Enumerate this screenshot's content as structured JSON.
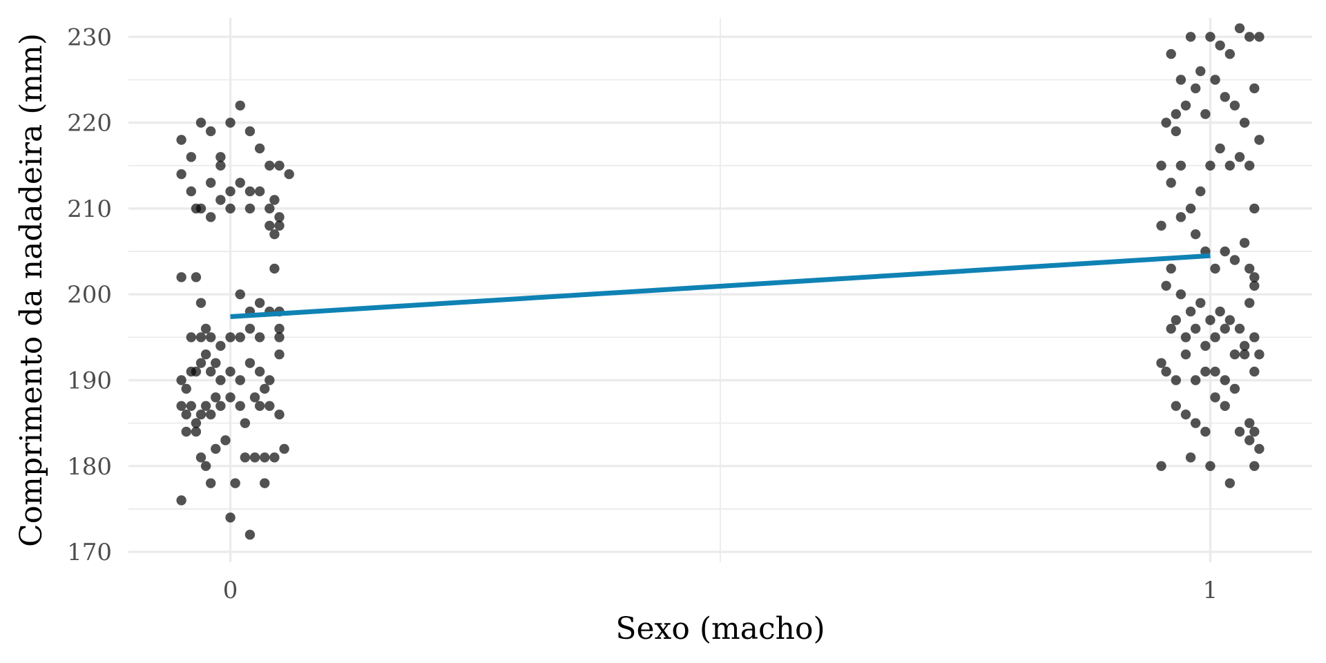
{
  "chart_data": {
    "type": "scatter",
    "title": "",
    "xlabel": "Sexo (macho)",
    "ylabel": "Comprimento da nadadeira (mm)",
    "xlim": [
      -0.104,
      1.104
    ],
    "ylim": [
      168.8,
      232.2
    ],
    "x_ticks": [
      0,
      1
    ],
    "y_ticks": [
      170,
      180,
      190,
      200,
      210,
      220,
      230
    ],
    "grid": true,
    "colors": {
      "points": "#000000",
      "fit_line": "#0f82b4",
      "grid": "#ebebeb"
    },
    "fit_line": {
      "x": [
        0,
        1
      ],
      "y": [
        197.4,
        204.5
      ]
    },
    "series": [
      {
        "points": [
          [
            -0.05,
            176
          ],
          [
            -0.05,
            218
          ],
          [
            -0.05,
            214
          ],
          [
            -0.04,
            216
          ],
          [
            -0.03,
            220
          ],
          [
            -0.02,
            219
          ],
          [
            -0.01,
            215
          ],
          [
            0.0,
            220
          ],
          [
            0.01,
            222
          ],
          [
            0.02,
            219
          ],
          [
            0.03,
            217
          ],
          [
            -0.04,
            212
          ],
          [
            -0.03,
            210
          ],
          [
            -0.02,
            213
          ],
          [
            -0.01,
            211
          ],
          [
            0.0,
            212
          ],
          [
            0.01,
            213
          ],
          [
            0.02,
            210
          ],
          [
            0.03,
            212
          ],
          [
            0.04,
            215
          ],
          [
            0.05,
            215
          ],
          [
            0.06,
            214
          ],
          [
            -0.035,
            210
          ],
          [
            -0.02,
            209
          ],
          [
            0.0,
            210
          ],
          [
            0.02,
            212
          ],
          [
            0.04,
            208
          ],
          [
            0.05,
            209
          ],
          [
            0.05,
            208
          ],
          [
            0.045,
            207
          ],
          [
            0.045,
            211
          ],
          [
            0.04,
            210
          ],
          [
            -0.01,
            216
          ],
          [
            -0.05,
            202
          ],
          [
            -0.035,
            202
          ],
          [
            -0.03,
            199
          ],
          [
            0.01,
            200
          ],
          [
            0.02,
            198
          ],
          [
            0.03,
            199
          ],
          [
            0.04,
            198
          ],
          [
            0.05,
            198
          ],
          [
            0.045,
            203
          ],
          [
            0.05,
            196
          ],
          [
            -0.04,
            195
          ],
          [
            -0.03,
            195
          ],
          [
            -0.025,
            196
          ],
          [
            -0.02,
            195
          ],
          [
            -0.01,
            194
          ],
          [
            0.0,
            195
          ],
          [
            0.01,
            195
          ],
          [
            0.02,
            196
          ],
          [
            0.03,
            195
          ],
          [
            0.05,
            195
          ],
          [
            -0.05,
            190
          ],
          [
            -0.045,
            189
          ],
          [
            -0.04,
            191
          ],
          [
            -0.035,
            191
          ],
          [
            -0.03,
            192
          ],
          [
            -0.025,
            193
          ],
          [
            -0.02,
            191
          ],
          [
            -0.015,
            192
          ],
          [
            -0.01,
            190
          ],
          [
            0.0,
            191
          ],
          [
            0.01,
            190
          ],
          [
            0.02,
            192
          ],
          [
            0.03,
            191
          ],
          [
            0.035,
            189
          ],
          [
            0.04,
            190
          ],
          [
            0.05,
            193
          ],
          [
            -0.05,
            187
          ],
          [
            -0.045,
            186
          ],
          [
            -0.04,
            187
          ],
          [
            -0.035,
            185
          ],
          [
            -0.03,
            186
          ],
          [
            -0.025,
            187
          ],
          [
            -0.02,
            186
          ],
          [
            -0.015,
            188
          ],
          [
            -0.01,
            187
          ],
          [
            0.0,
            188
          ],
          [
            0.01,
            187
          ],
          [
            0.015,
            185
          ],
          [
            0.025,
            188
          ],
          [
            0.03,
            187
          ],
          [
            0.04,
            187
          ],
          [
            0.05,
            186
          ],
          [
            -0.045,
            184
          ],
          [
            -0.035,
            184
          ],
          [
            -0.03,
            181
          ],
          [
            -0.025,
            180
          ],
          [
            -0.015,
            182
          ],
          [
            -0.005,
            183
          ],
          [
            0.015,
            181
          ],
          [
            0.025,
            181
          ],
          [
            0.035,
            181
          ],
          [
            0.045,
            181
          ],
          [
            0.055,
            182
          ],
          [
            -0.02,
            178
          ],
          [
            0.005,
            178
          ],
          [
            0.035,
            178
          ],
          [
            0.0,
            174
          ],
          [
            0.02,
            172
          ]
        ]
      },
      {
        "points": [
          [
            0.95,
            215
          ],
          [
            0.96,
            228
          ],
          [
            0.97,
            225
          ],
          [
            0.98,
            230
          ],
          [
            0.99,
            226
          ],
          [
            1.0,
            230
          ],
          [
            1.01,
            229
          ],
          [
            1.02,
            228
          ],
          [
            1.03,
            231
          ],
          [
            1.04,
            230
          ],
          [
            1.05,
            230
          ],
          [
            0.955,
            220
          ],
          [
            0.965,
            221
          ],
          [
            0.975,
            222
          ],
          [
            0.985,
            224
          ],
          [
            0.995,
            221
          ],
          [
            1.005,
            225
          ],
          [
            1.015,
            223
          ],
          [
            1.025,
            222
          ],
          [
            1.035,
            220
          ],
          [
            1.045,
            224
          ],
          [
            1.05,
            218
          ],
          [
            0.96,
            213
          ],
          [
            0.97,
            215
          ],
          [
            0.98,
            210
          ],
          [
            0.99,
            212
          ],
          [
            1.0,
            215
          ],
          [
            1.01,
            217
          ],
          [
            1.02,
            215
          ],
          [
            1.03,
            216
          ],
          [
            1.04,
            215
          ],
          [
            1.045,
            210
          ],
          [
            0.965,
            219
          ],
          [
            0.95,
            208
          ],
          [
            0.97,
            209
          ],
          [
            0.985,
            207
          ],
          [
            0.995,
            205
          ],
          [
            1.005,
            203
          ],
          [
            1.015,
            205
          ],
          [
            1.025,
            204
          ],
          [
            1.035,
            206
          ],
          [
            1.04,
            203
          ],
          [
            1.045,
            202
          ],
          [
            0.955,
            201
          ],
          [
            0.96,
            203
          ],
          [
            0.97,
            200
          ],
          [
            0.98,
            198
          ],
          [
            0.99,
            199
          ],
          [
            1.0,
            197
          ],
          [
            1.01,
            198
          ],
          [
            1.02,
            197
          ],
          [
            1.03,
            196
          ],
          [
            1.04,
            199
          ],
          [
            1.045,
            201
          ],
          [
            0.95,
            192
          ],
          [
            0.96,
            196
          ],
          [
            0.965,
            197
          ],
          [
            0.975,
            195
          ],
          [
            0.985,
            196
          ],
          [
            0.995,
            194
          ],
          [
            1.005,
            195
          ],
          [
            1.015,
            196
          ],
          [
            1.025,
            193
          ],
          [
            1.035,
            194
          ],
          [
            1.045,
            195
          ],
          [
            0.955,
            191
          ],
          [
            0.965,
            190
          ],
          [
            0.975,
            193
          ],
          [
            0.985,
            190
          ],
          [
            0.995,
            191
          ],
          [
            1.005,
            191
          ],
          [
            1.015,
            190
          ],
          [
            1.025,
            189
          ],
          [
            1.035,
            193
          ],
          [
            1.045,
            191
          ],
          [
            1.05,
            193
          ],
          [
            0.965,
            187
          ],
          [
            0.975,
            186
          ],
          [
            0.985,
            185
          ],
          [
            0.995,
            184
          ],
          [
            1.005,
            188
          ],
          [
            1.015,
            187
          ],
          [
            1.03,
            184
          ],
          [
            1.04,
            185
          ],
          [
            1.045,
            184
          ],
          [
            0.95,
            180
          ],
          [
            0.98,
            181
          ],
          [
            1.0,
            180
          ],
          [
            1.02,
            178
          ],
          [
            1.04,
            183
          ],
          [
            1.045,
            180
          ],
          [
            1.05,
            182
          ]
        ]
      }
    ]
  }
}
